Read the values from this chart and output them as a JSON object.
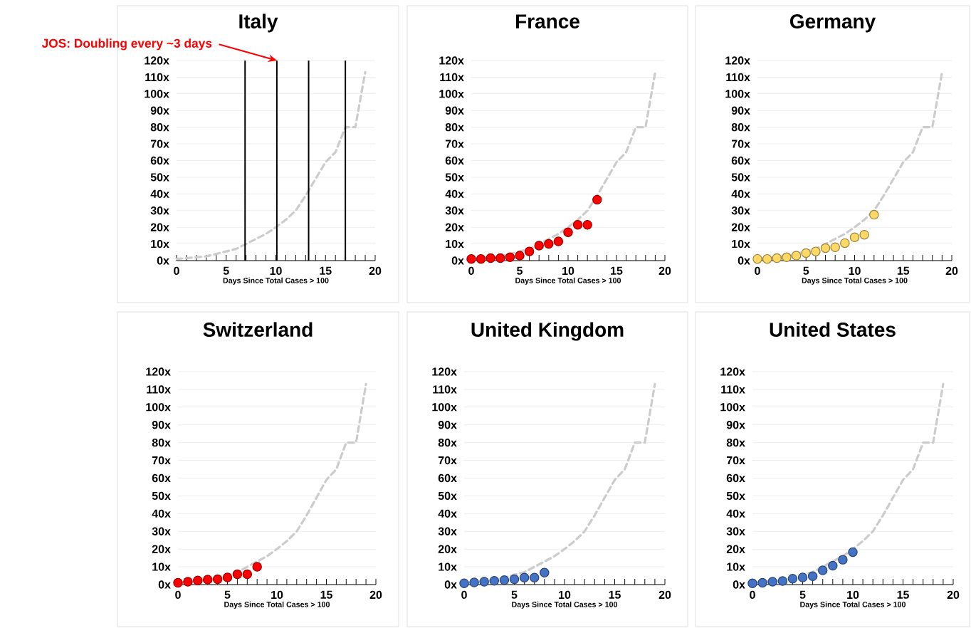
{
  "chart_data": [
    {
      "type": "scatter",
      "title": "Italy",
      "xlabel": "Days Since Total Cases > 100",
      "xlim": [
        0,
        20
      ],
      "ylim": [
        0,
        120
      ],
      "xticks": [
        0,
        5,
        10,
        15,
        20
      ],
      "yticks": [
        {
          "value": 0,
          "label": "0x"
        },
        {
          "value": 10,
          "label": "10x"
        },
        {
          "value": 20,
          "label": "20x"
        },
        {
          "value": 30,
          "label": "30x"
        },
        {
          "value": 40,
          "label": "40x"
        },
        {
          "value": 50,
          "label": "50x"
        },
        {
          "value": 60,
          "label": "60x"
        },
        {
          "value": 70,
          "label": "70x"
        },
        {
          "value": 80,
          "label": "80x"
        },
        {
          "value": 90,
          "label": "90x"
        },
        {
          "value": 100,
          "label": "100x"
        },
        {
          "value": 110,
          "label": "110x"
        },
        {
          "value": 120,
          "label": "120x"
        }
      ],
      "grid": "y",
      "series": [
        {
          "type": "line",
          "color": "#cccccc",
          "line_style": "dashed",
          "marker": "none",
          "x": [
            0,
            1,
            2,
            3,
            4,
            5,
            6,
            7,
            8,
            9,
            10,
            11,
            12,
            13,
            14,
            15,
            16,
            17,
            18,
            19
          ],
          "values": [
            1,
            1.5,
            2,
            2.5,
            4,
            5.5,
            7,
            10,
            13,
            16,
            20,
            24.5,
            30,
            39,
            49,
            59,
            65,
            80,
            80,
            113
          ]
        }
      ],
      "ref_lines": [
        {
          "axis": "x",
          "value": 6.9,
          "color": "#000000"
        },
        {
          "axis": "x",
          "value": 10.1,
          "color": "#000000"
        },
        {
          "axis": "x",
          "value": 13.3,
          "color": "#000000"
        },
        {
          "axis": "x",
          "value": 17,
          "color": "#000000"
        }
      ],
      "annotations": [
        {
          "text": "JOS: Doubling every ~3 days",
          "x": 10.1,
          "y": 120
        }
      ]
    },
    {
      "type": "scatter",
      "title": "France",
      "xlabel": "Days Since Total Cases > 100",
      "xlim": [
        0,
        20
      ],
      "ylim": [
        0,
        120
      ],
      "xticks": [
        0,
        5,
        10,
        15,
        20
      ],
      "yticks": [
        {
          "value": 0,
          "label": "0x"
        },
        {
          "value": 10,
          "label": "10x"
        },
        {
          "value": 20,
          "label": "20x"
        },
        {
          "value": 30,
          "label": "30x"
        },
        {
          "value": 40,
          "label": "40x"
        },
        {
          "value": 50,
          "label": "50x"
        },
        {
          "value": 60,
          "label": "60x"
        },
        {
          "value": 70,
          "label": "70x"
        },
        {
          "value": 80,
          "label": "80x"
        },
        {
          "value": 90,
          "label": "90x"
        },
        {
          "value": 100,
          "label": "100x"
        },
        {
          "value": 110,
          "label": "110x"
        },
        {
          "value": 120,
          "label": "120x"
        }
      ],
      "grid": "y",
      "marker": "circle",
      "series": [
        {
          "type": "line",
          "color": "#cccccc",
          "line_style": "dashed",
          "marker": "none",
          "x": [
            0,
            1,
            2,
            3,
            4,
            5,
            6,
            7,
            8,
            9,
            10,
            11,
            12,
            13,
            14,
            15,
            16,
            17,
            18,
            19
          ],
          "values": [
            1,
            1.5,
            2,
            2.5,
            4,
            5.5,
            7,
            10,
            13,
            16,
            20,
            24.5,
            30,
            39,
            49,
            59,
            65,
            80,
            80,
            113
          ]
        },
        {
          "color": "#ff0000",
          "x": [
            0,
            1,
            2,
            3,
            4,
            5,
            6,
            7,
            8,
            9,
            10,
            11,
            12,
            13
          ],
          "values": [
            1,
            1,
            1.5,
            1.5,
            2,
            3,
            5.5,
            9,
            10,
            11.5,
            17,
            21.5,
            21.5,
            36.5
          ]
        }
      ]
    },
    {
      "type": "scatter",
      "title": "Germany",
      "xlabel": "Days Since Total Cases > 100",
      "xlim": [
        0,
        20
      ],
      "ylim": [
        0,
        120
      ],
      "xticks": [
        0,
        5,
        10,
        15,
        20
      ],
      "yticks": [
        {
          "value": 0,
          "label": "0x"
        },
        {
          "value": 10,
          "label": "10x"
        },
        {
          "value": 20,
          "label": "20x"
        },
        {
          "value": 30,
          "label": "30x"
        },
        {
          "value": 40,
          "label": "40x"
        },
        {
          "value": 50,
          "label": "50x"
        },
        {
          "value": 60,
          "label": "60x"
        },
        {
          "value": 70,
          "label": "70x"
        },
        {
          "value": 80,
          "label": "80x"
        },
        {
          "value": 90,
          "label": "90x"
        },
        {
          "value": 100,
          "label": "100x"
        },
        {
          "value": 110,
          "label": "110x"
        },
        {
          "value": 120,
          "label": "120x"
        }
      ],
      "grid": "y",
      "marker": "circle",
      "series": [
        {
          "type": "line",
          "color": "#cccccc",
          "line_style": "dashed",
          "marker": "none",
          "x": [
            0,
            1,
            2,
            3,
            4,
            5,
            6,
            7,
            8,
            9,
            10,
            11,
            12,
            13,
            14,
            15,
            16,
            17,
            18,
            19
          ],
          "values": [
            1,
            1.5,
            2,
            2.5,
            4,
            5.5,
            7,
            10,
            13,
            16,
            20,
            24.5,
            30,
            39,
            49,
            59,
            65,
            80,
            80,
            113
          ]
        },
        {
          "color": "#ffd966",
          "x": [
            0,
            1,
            2,
            3,
            4,
            5,
            6,
            7,
            8,
            9,
            10,
            11,
            12
          ],
          "values": [
            1,
            1,
            1.5,
            2,
            3,
            4.5,
            5.5,
            7.5,
            8,
            10.5,
            14,
            15.5,
            27.5
          ]
        }
      ]
    },
    {
      "type": "scatter",
      "title": "Switzerland",
      "xlabel": "Days Since Total Cases > 100",
      "xlim": [
        0,
        20
      ],
      "ylim": [
        0,
        120
      ],
      "xticks": [
        0,
        5,
        10,
        15,
        20
      ],
      "yticks": [
        {
          "value": 0,
          "label": "0x"
        },
        {
          "value": 10,
          "label": "10x"
        },
        {
          "value": 20,
          "label": "20x"
        },
        {
          "value": 30,
          "label": "30x"
        },
        {
          "value": 40,
          "label": "40x"
        },
        {
          "value": 50,
          "label": "50x"
        },
        {
          "value": 60,
          "label": "60x"
        },
        {
          "value": 70,
          "label": "70x"
        },
        {
          "value": 80,
          "label": "80x"
        },
        {
          "value": 90,
          "label": "90x"
        },
        {
          "value": 100,
          "label": "100x"
        },
        {
          "value": 110,
          "label": "110x"
        },
        {
          "value": 120,
          "label": "120x"
        }
      ],
      "grid": "y",
      "marker": "circle",
      "series": [
        {
          "type": "line",
          "color": "#cccccc",
          "line_style": "dashed",
          "marker": "none",
          "x": [
            0,
            1,
            2,
            3,
            4,
            5,
            6,
            7,
            8,
            9,
            10,
            11,
            12,
            13,
            14,
            15,
            16,
            17,
            18,
            19
          ],
          "values": [
            1,
            1.5,
            2,
            2.5,
            4,
            5.5,
            7,
            10,
            13,
            16,
            20,
            24.5,
            30,
            39,
            49,
            59,
            65,
            80,
            80,
            113
          ]
        },
        {
          "color": "#ff0000",
          "x": [
            0,
            1,
            2,
            3,
            4,
            5,
            6,
            7,
            8
          ],
          "values": [
            1,
            1.6,
            2.3,
            2.8,
            3,
            4,
            5.8,
            5.8,
            10
          ]
        }
      ]
    },
    {
      "type": "scatter",
      "title": "United Kingdom",
      "xlabel": "Days Since Total Cases > 100",
      "xlim": [
        0,
        20
      ],
      "ylim": [
        0,
        120
      ],
      "xticks": [
        0,
        5,
        10,
        15,
        20
      ],
      "yticks": [
        {
          "value": 0,
          "label": "0x"
        },
        {
          "value": 10,
          "label": "10x"
        },
        {
          "value": 20,
          "label": "20x"
        },
        {
          "value": 30,
          "label": "30x"
        },
        {
          "value": 40,
          "label": "40x"
        },
        {
          "value": 50,
          "label": "50x"
        },
        {
          "value": 60,
          "label": "60x"
        },
        {
          "value": 70,
          "label": "70x"
        },
        {
          "value": 80,
          "label": "80x"
        },
        {
          "value": 90,
          "label": "90x"
        },
        {
          "value": 100,
          "label": "100x"
        },
        {
          "value": 110,
          "label": "110x"
        },
        {
          "value": 120,
          "label": "120x"
        }
      ],
      "grid": "y",
      "marker": "circle",
      "series": [
        {
          "type": "line",
          "color": "#cccccc",
          "line_style": "dashed",
          "marker": "none",
          "x": [
            0,
            1,
            2,
            3,
            4,
            5,
            6,
            7,
            8,
            9,
            10,
            11,
            12,
            13,
            14,
            15,
            16,
            17,
            18,
            19
          ],
          "values": [
            1,
            1.5,
            2,
            2.5,
            4,
            5.5,
            7,
            10,
            13,
            16,
            20,
            24.5,
            30,
            39,
            49,
            59,
            65,
            80,
            80,
            113
          ]
        },
        {
          "color": "#4472c4",
          "x": [
            0,
            1,
            2,
            3,
            4,
            5,
            6,
            7,
            8
          ],
          "values": [
            0.7,
            1.2,
            1.6,
            2.1,
            2.5,
            3,
            3.9,
            3.9,
            6.7
          ]
        }
      ]
    },
    {
      "type": "scatter",
      "title": "United States",
      "xlabel": "Days Since Total Cases > 100",
      "xlim": [
        0,
        20
      ],
      "ylim": [
        0,
        120
      ],
      "xticks": [
        0,
        5,
        10,
        15,
        20
      ],
      "yticks": [
        {
          "value": 0,
          "label": "0x"
        },
        {
          "value": 10,
          "label": "10x"
        },
        {
          "value": 20,
          "label": "20x"
        },
        {
          "value": 30,
          "label": "30x"
        },
        {
          "value": 40,
          "label": "40x"
        },
        {
          "value": 50,
          "label": "50x"
        },
        {
          "value": 60,
          "label": "60x"
        },
        {
          "value": 70,
          "label": "70x"
        },
        {
          "value": 80,
          "label": "80x"
        },
        {
          "value": 90,
          "label": "90x"
        },
        {
          "value": 100,
          "label": "100x"
        },
        {
          "value": 110,
          "label": "110x"
        },
        {
          "value": 120,
          "label": "120x"
        }
      ],
      "grid": "y",
      "marker": "circle",
      "series": [
        {
          "type": "line",
          "color": "#cccccc",
          "line_style": "dashed",
          "marker": "none",
          "x": [
            0,
            1,
            2,
            3,
            4,
            5,
            6,
            7,
            8,
            9,
            10,
            11,
            12,
            13,
            14,
            15,
            16,
            17,
            18,
            19
          ],
          "values": [
            1,
            1.5,
            2,
            2.5,
            4,
            5.5,
            7,
            10,
            13,
            16,
            20,
            24.5,
            30,
            39,
            49,
            59,
            65,
            80,
            80,
            113
          ]
        },
        {
          "color": "#4472c4",
          "x": [
            0,
            1,
            2,
            3,
            4,
            5,
            6,
            7,
            8,
            9,
            10
          ],
          "values": [
            0.7,
            1,
            1.6,
            2,
            3.3,
            4,
            4.7,
            8,
            10.6,
            14,
            18.3
          ]
        }
      ]
    }
  ]
}
